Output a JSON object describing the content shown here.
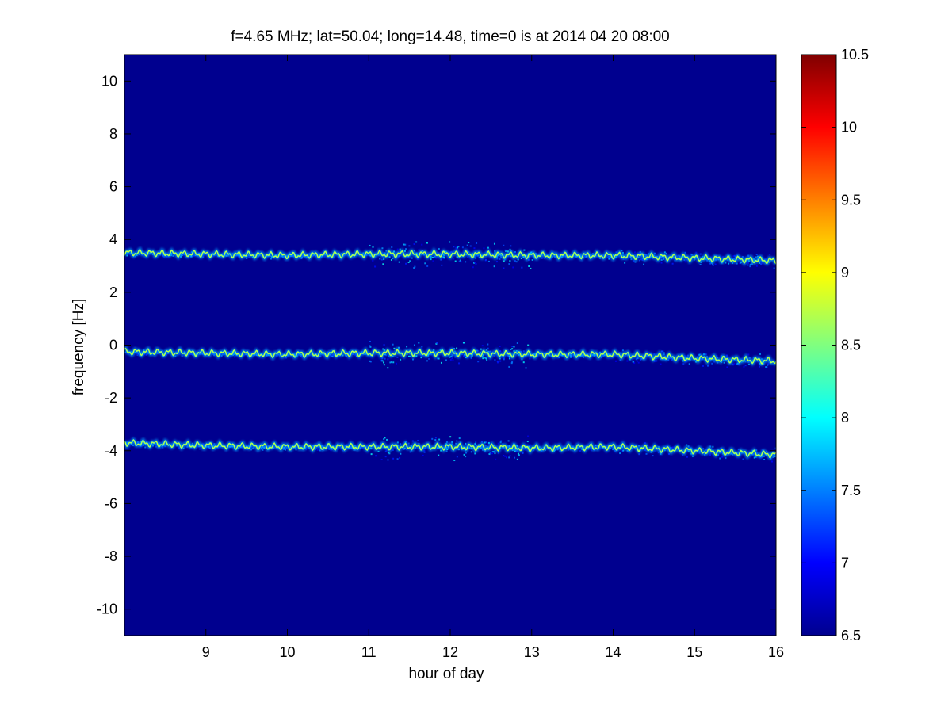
{
  "chart_data": {
    "type": "heatmap",
    "title": "f=4.65 MHz;  lat=50.04; long=14.48, time=0 is at 2014 04 20 08:00",
    "xlabel": "hour of day",
    "ylabel": "frequency [Hz]",
    "xlim": [
      8,
      16
    ],
    "ylim": [
      -11,
      11
    ],
    "xticks": [
      9,
      10,
      11,
      12,
      13,
      14,
      15,
      16
    ],
    "yticks": [
      -10,
      -8,
      -6,
      -4,
      -2,
      0,
      2,
      4,
      6,
      8,
      10
    ],
    "colormap": "jet",
    "clim": [
      6.5,
      10.5
    ],
    "colorbar_ticks": [
      6.5,
      7,
      7.5,
      8,
      8.5,
      9,
      9.5,
      10,
      10.5
    ],
    "colorbar_tick_labels": [
      "6.5",
      "7",
      "7.5",
      "8",
      "8.5",
      "9",
      "9.5",
      "10",
      "10.5"
    ],
    "background_color": "#00008f",
    "background_value": 6.5,
    "traces": [
      {
        "center_hz": 3.45,
        "peak_value": 9.0,
        "x": [
          8.0,
          9.0,
          10.0,
          11.0,
          12.0,
          13.0,
          14.0,
          15.0,
          16.0
        ],
        "y": [
          3.5,
          3.45,
          3.4,
          3.45,
          3.45,
          3.4,
          3.4,
          3.3,
          3.2
        ]
      },
      {
        "center_hz": -0.3,
        "peak_value": 9.0,
        "x": [
          8.0,
          9.0,
          10.0,
          11.0,
          12.0,
          13.0,
          14.0,
          15.0,
          16.0
        ],
        "y": [
          -0.25,
          -0.3,
          -0.35,
          -0.3,
          -0.3,
          -0.35,
          -0.35,
          -0.5,
          -0.6
        ]
      },
      {
        "center_hz": -3.85,
        "peak_value": 9.0,
        "x": [
          8.0,
          9.0,
          10.0,
          11.0,
          12.0,
          13.0,
          14.0,
          15.0,
          16.0
        ],
        "y": [
          -3.7,
          -3.8,
          -3.85,
          -3.85,
          -3.85,
          -3.9,
          -3.85,
          -4.0,
          -4.15
        ]
      }
    ]
  }
}
